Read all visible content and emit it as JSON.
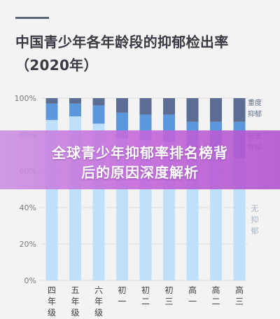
{
  "header": {
    "title": "中国青少年各年龄段的抑郁检出率（2020年）"
  },
  "overlay": {
    "line1": "全球青少年抑郁率排名榜背",
    "line2": "后的原因深度解析"
  },
  "chart_data": {
    "type": "bar",
    "stacked": true,
    "title": "中国青少年各年龄段的抑郁检出率（2020年）",
    "categories": [
      "四年级",
      "五年级",
      "六年级",
      "初一",
      "初二",
      "初三",
      "高一",
      "高二",
      "高三"
    ],
    "category_label_lines": [
      [
        "四",
        "年",
        "级"
      ],
      [
        "五",
        "年",
        "级"
      ],
      [
        "六",
        "年",
        "级"
      ],
      [
        "初",
        "一"
      ],
      [
        "初",
        "二"
      ],
      [
        "初",
        "三"
      ],
      [
        "高",
        "一"
      ],
      [
        "高",
        "二"
      ],
      [
        "高",
        "三"
      ]
    ],
    "y_ticks": [
      "0%",
      "20%",
      "40%",
      "60%",
      "80%",
      "100%"
    ],
    "ylim": [
      0,
      100
    ],
    "series": [
      {
        "name": "无抑郁",
        "label_lines": [
          "无",
          "抑",
          "郁"
        ],
        "values": [
          88,
          90,
          86,
          78,
          77,
          76,
          72,
          71,
          67
        ],
        "color": "#bfe0fb"
      },
      {
        "name": "轻度抑郁",
        "label_lines": [
          "轻度",
          "抑郁"
        ],
        "values": [
          9,
          7,
          10,
          14,
          14,
          15,
          15,
          16,
          20
        ],
        "color": "#5b97dd"
      },
      {
        "name": "重度抑郁",
        "label_lines": [
          "重度",
          "抑郁"
        ],
        "values": [
          3,
          3,
          4,
          8,
          9,
          9,
          13,
          13,
          13
        ],
        "color": "#5b6d92"
      }
    ],
    "grid": true,
    "legend": "right"
  }
}
